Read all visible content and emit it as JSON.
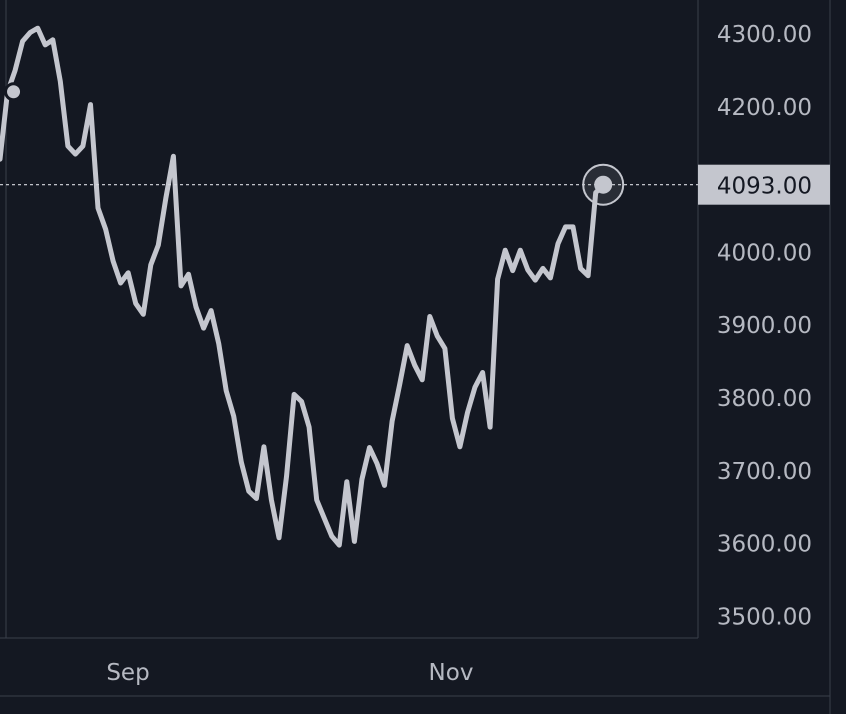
{
  "chart_data": {
    "type": "line",
    "title": "",
    "xlabel": "",
    "ylabel": "",
    "x_tick_labels": [
      "Sep",
      "Nov"
    ],
    "y_tick_labels": [
      "4300.00",
      "4200.00",
      "4093.00",
      "4000.00",
      "3900.00",
      "3800.00",
      "3700.00",
      "3600.00",
      "3500.00"
    ],
    "y_ticks": [
      4300,
      4200,
      4000,
      3900,
      3800,
      3700,
      3600,
      3500
    ],
    "ylim": [
      3470,
      4320
    ],
    "last_value": 4093,
    "last_value_label": "4093.00",
    "grid": false,
    "legend": "none",
    "colors": {
      "background": "#141822",
      "line": "#c4c6ce",
      "axis": "#3a3f4b",
      "text": "#b6b9c2",
      "label_bg": "#c4c6ce"
    },
    "series": [
      {
        "values": [
          4128,
          4220,
          4250,
          4290,
          4302,
          4308,
          4285,
          4292,
          4235,
          4146,
          4135,
          4146,
          4203,
          4061,
          4032,
          3988,
          3958,
          3972,
          3930,
          3915,
          3983,
          4010,
          4075,
          4132,
          3954,
          3970,
          3925,
          3896,
          3920,
          3875,
          3810,
          3775,
          3712,
          3672,
          3662,
          3733,
          3660,
          3608,
          3692,
          3805,
          3795,
          3760,
          3660,
          3635,
          3610,
          3598,
          3685,
          3603,
          3688,
          3732,
          3710,
          3680,
          3768,
          3818,
          3872,
          3845,
          3825,
          3912,
          3885,
          3868,
          3772,
          3733,
          3780,
          3815,
          3835,
          3760,
          3963,
          4003,
          3975,
          4003,
          3976,
          3962,
          3978,
          3965,
          4012,
          4035,
          4035,
          3978,
          3968,
          4082,
          4093
        ]
      }
    ]
  }
}
